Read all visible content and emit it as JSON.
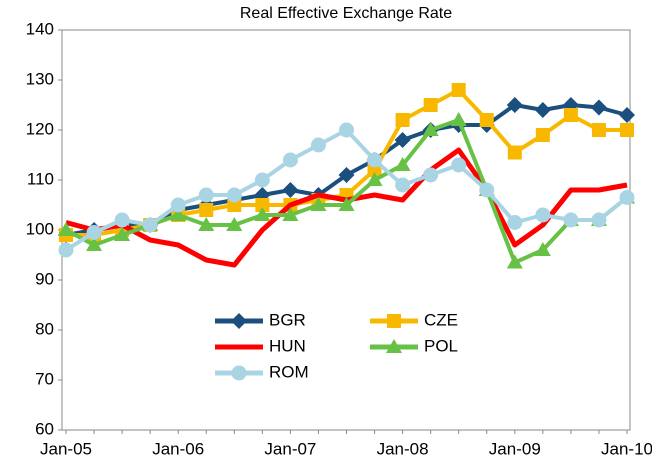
{
  "chart_data": {
    "type": "line",
    "title": "Real Effective Exchange Rate",
    "categories": [
      "Jan-05",
      null,
      null,
      null,
      "Jan-06",
      null,
      null,
      null,
      "Jan-07",
      null,
      null,
      null,
      "Jan-08",
      null,
      null,
      null,
      "Jan-09",
      null,
      null,
      null,
      "Jan-10"
    ],
    "series": [
      {
        "name": "BGR",
        "color": "#1a4f7e",
        "marker": "diamond",
        "values": [
          99,
          100,
          101,
          101,
          104,
          105,
          106,
          107,
          108,
          107,
          111,
          114,
          118,
          120,
          121,
          121,
          125,
          124,
          125,
          124.5,
          123
        ]
      },
      {
        "name": "CZE",
        "color": "#f9b800",
        "marker": "square",
        "values": [
          99,
          99,
          100,
          101,
          103,
          104,
          105,
          105,
          105,
          106,
          107,
          112,
          122,
          125,
          128,
          122,
          115.5,
          119,
          123,
          120,
          120
        ]
      },
      {
        "name": "HUN",
        "color": "#ff0000",
        "marker": "none",
        "values": [
          101.5,
          100,
          101,
          98,
          97,
          94,
          93,
          100,
          105,
          107,
          106,
          107,
          106,
          112,
          116,
          108,
          97,
          101,
          108,
          108,
          109
        ]
      },
      {
        "name": "POL",
        "color": "#66c144",
        "marker": "triangle",
        "values": [
          100,
          97,
          99,
          101,
          103,
          101,
          101,
          103,
          103,
          105,
          105,
          110,
          113,
          120,
          122,
          108,
          93.5,
          96,
          102,
          102,
          106.5
        ]
      },
      {
        "name": "ROM",
        "color": "#a8d4e4",
        "marker": "circle",
        "values": [
          96,
          99.5,
          102,
          101,
          105,
          107,
          107,
          110,
          114,
          117,
          120,
          114,
          109,
          111,
          113,
          108,
          101.5,
          103,
          102,
          102,
          106.5
        ]
      }
    ],
    "ylim": [
      60,
      140
    ],
    "yticks": [
      60,
      70,
      80,
      90,
      100,
      110,
      120,
      130,
      140
    ]
  }
}
